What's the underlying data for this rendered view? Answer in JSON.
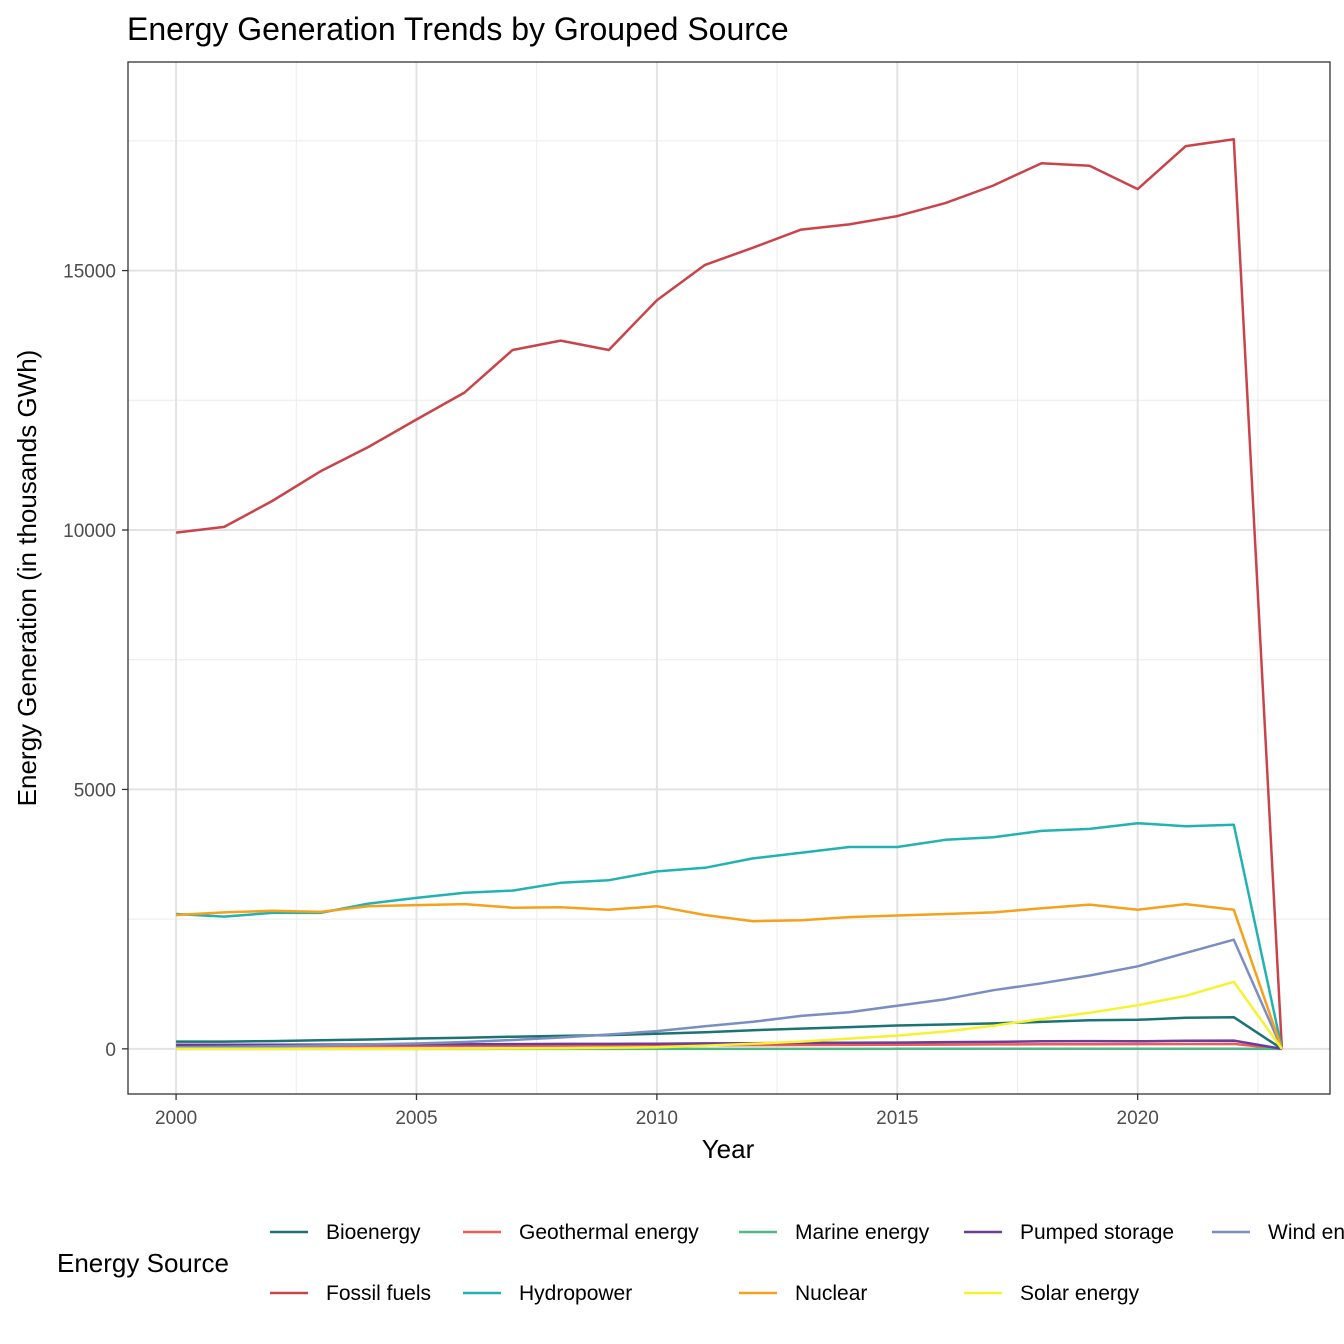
{
  "chart_data": {
    "type": "line",
    "title": "Energy Generation Trends by Grouped Source",
    "xlabel": "Year",
    "ylabel": "Energy Generation (in thousands GWh)",
    "legend_title": "Energy Source",
    "legend_position": "bottom",
    "grid": true,
    "xlim": [
      1999,
      2024
    ],
    "ylim": [
      -870,
      19020
    ],
    "x_ticks": [
      "2000",
      "2005",
      "2010",
      "2015",
      "2020"
    ],
    "y_ticks": [
      "0",
      "5000",
      "10000",
      "15000"
    ],
    "x": [
      2000,
      2001,
      2002,
      2003,
      2004,
      2005,
      2006,
      2007,
      2008,
      2009,
      2010,
      2011,
      2012,
      2013,
      2014,
      2015,
      2016,
      2017,
      2018,
      2019,
      2020,
      2021,
      2022,
      2023
    ],
    "series": [
      {
        "name": "Bioenergy",
        "color": "#1B7373",
        "values": [
          140,
          140,
          150,
          165,
          180,
          200,
          215,
          235,
          250,
          265,
          290,
          320,
          360,
          390,
          420,
          450,
          470,
          490,
          520,
          550,
          560,
          600,
          610,
          0
        ]
      },
      {
        "name": "Geothermal energy",
        "color": "#F05A5A",
        "values": [
          50,
          52,
          53,
          54,
          55,
          57,
          58,
          60,
          62,
          65,
          68,
          70,
          72,
          74,
          77,
          80,
          82,
          85,
          88,
          90,
          92,
          93,
          95,
          0
        ]
      },
      {
        "name": "Marine energy",
        "color": "#52B788",
        "values": [
          0,
          0,
          0,
          0,
          0,
          0,
          0,
          0,
          0,
          0,
          0,
          0,
          0,
          0,
          0,
          1,
          1,
          1,
          1,
          1,
          1,
          1,
          1,
          0
        ]
      },
      {
        "name": "Pumped storage",
        "color": "#6A3D9A",
        "values": [
          80,
          80,
          80,
          82,
          85,
          88,
          90,
          92,
          95,
          95,
          100,
          105,
          110,
          115,
          118,
          120,
          130,
          135,
          145,
          150,
          145,
          155,
          160,
          0
        ]
      },
      {
        "name": "Wind energy",
        "color": "#7B8EC2",
        "values": [
          30,
          38,
          52,
          64,
          85,
          104,
          132,
          171,
          219,
          276,
          342,
          434,
          522,
          636,
          706,
          831,
          958,
          1131,
          1263,
          1414,
          1592,
          1850,
          2104,
          0
        ]
      },
      {
        "name": "Fossil fuels",
        "color": "#C9444A",
        "values": [
          9950,
          10060,
          10560,
          11130,
          11600,
          12130,
          12650,
          13470,
          13650,
          13470,
          14430,
          15110,
          15440,
          15790,
          15890,
          16050,
          16300,
          16640,
          17070,
          17020,
          16570,
          17400,
          17530,
          0
        ]
      },
      {
        "name": "Hydropower",
        "color": "#22B2B2",
        "values": [
          2600,
          2550,
          2620,
          2620,
          2800,
          2910,
          3010,
          3050,
          3200,
          3250,
          3420,
          3490,
          3670,
          3780,
          3890,
          3890,
          4030,
          4080,
          4200,
          4240,
          4350,
          4290,
          4320,
          0
        ]
      },
      {
        "name": "Nuclear",
        "color": "#F5A11C",
        "values": [
          2580,
          2630,
          2660,
          2640,
          2750,
          2770,
          2790,
          2720,
          2730,
          2680,
          2750,
          2580,
          2460,
          2480,
          2540,
          2570,
          2600,
          2630,
          2710,
          2780,
          2680,
          2790,
          2680,
          0
        ]
      },
      {
        "name": "Solar energy",
        "color": "#F7F22E",
        "values": [
          1,
          1,
          2,
          2,
          3,
          4,
          5,
          7,
          12,
          20,
          32,
          63,
          98,
          139,
          197,
          256,
          335,
          447,
          576,
          695,
          842,
          1023,
          1293,
          0
        ]
      }
    ],
    "legend_layout": [
      [
        "Bioenergy",
        "Geothermal energy",
        "Marine energy",
        "Pumped storage",
        "Wind energy"
      ],
      [
        "Fossil fuels",
        "Hydropower",
        "Nuclear",
        "Solar energy"
      ]
    ]
  }
}
